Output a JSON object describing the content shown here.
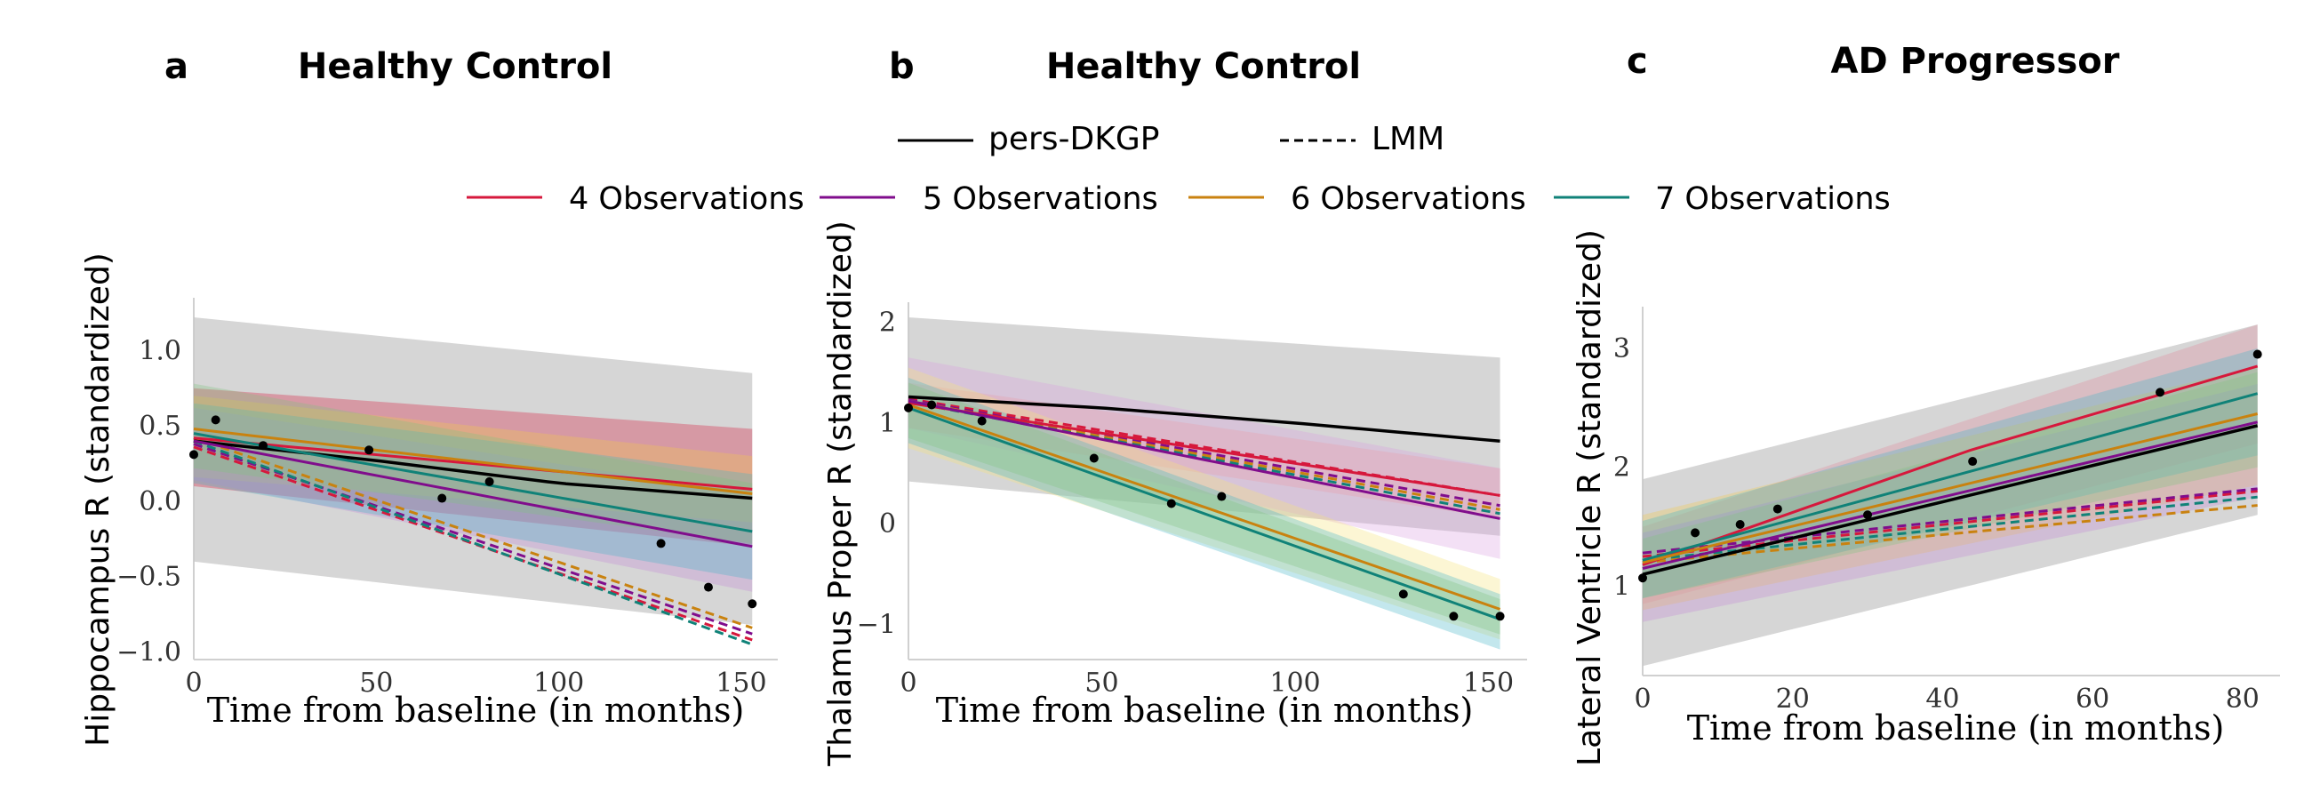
{
  "legend": {
    "styles": [
      {
        "label": "pers-DKGP",
        "dash": "solid"
      },
      {
        "label": "LMM",
        "dash": "dashed"
      }
    ],
    "observations": [
      {
        "label": "4 Observations",
        "color": "#d6183c"
      },
      {
        "label": "5 Observations",
        "color": "#800d8c"
      },
      {
        "label": "6 Observations",
        "color": "#c9820f"
      },
      {
        "label": "7 Observations",
        "color": "#108278"
      }
    ]
  },
  "chart_data": [
    {
      "type": "line",
      "panel_letter": "a",
      "title": "Healthy Control",
      "xlabel": "Time from baseline (in months)",
      "ylabel": "Hippocampus R (standardized)",
      "xlim": [
        0,
        160
      ],
      "ylim": [
        -1.05,
        1.35
      ],
      "xticks": [
        0,
        50,
        100,
        150
      ],
      "xtick_labels": [
        "0",
        "50",
        "100",
        "150"
      ],
      "yticks": [
        -1.0,
        -0.5,
        0.0,
        0.5,
        1.0
      ],
      "ytick_labels": [
        "−1.0",
        "−0.5",
        "0.0",
        "0.5",
        "1.0"
      ],
      "points": [
        {
          "x": 0,
          "y": 0.31
        },
        {
          "x": 6,
          "y": 0.54
        },
        {
          "x": 19,
          "y": 0.37
        },
        {
          "x": 48,
          "y": 0.34
        },
        {
          "x": 68,
          "y": 0.02
        },
        {
          "x": 81,
          "y": 0.13
        },
        {
          "x": 128,
          "y": -0.28
        },
        {
          "x": 141,
          "y": -0.57
        },
        {
          "x": 153,
          "y": -0.68
        }
      ],
      "bands": [
        {
          "name": "pers-DKGP",
          "color": "#c8c8c8",
          "x": [
            0,
            153
          ],
          "lower": [
            -0.4,
            -0.82
          ],
          "upper": [
            1.22,
            0.85
          ]
        },
        {
          "name": "4 Observations",
          "color": "#d6183c",
          "x": [
            0,
            153
          ],
          "lower": [
            0.1,
            -0.3
          ],
          "upper": [
            0.75,
            0.48
          ]
        },
        {
          "name": "6 Observations",
          "color": "#f2c94c",
          "x": [
            0,
            153
          ],
          "lower": [
            0.16,
            -0.14
          ],
          "upper": [
            0.7,
            0.3
          ]
        },
        {
          "name": "5 Observations",
          "color": "#c48ad6",
          "x": [
            0,
            153
          ],
          "lower": [
            0.14,
            -0.6
          ],
          "upper": [
            0.62,
            0.05
          ]
        },
        {
          "name": "7 Observations",
          "color": "#44b4c8",
          "x": [
            0,
            153
          ],
          "lower": [
            0.12,
            -0.52
          ],
          "upper": [
            0.65,
            0.18
          ]
        },
        {
          "name": "overlap",
          "color": "#7fc47f",
          "x": [
            0,
            153
          ],
          "lower": [
            0.22,
            -0.28
          ],
          "upper": [
            0.78,
            0.12
          ]
        }
      ],
      "series": [
        {
          "name": "pers-DKGP",
          "color": "#000000",
          "dash": "solid",
          "x": [
            0,
            50,
            100,
            153
          ],
          "y": [
            0.4,
            0.27,
            0.12,
            0.02
          ]
        },
        {
          "name": "4 Observations",
          "color": "#d6183c",
          "dash": "solid",
          "x": [
            0,
            153
          ],
          "y": [
            0.42,
            0.08
          ]
        },
        {
          "name": "5 Observations",
          "color": "#800d8c",
          "dash": "solid",
          "x": [
            0,
            153
          ],
          "y": [
            0.4,
            -0.3
          ]
        },
        {
          "name": "6 Observations",
          "color": "#c9820f",
          "dash": "solid",
          "x": [
            0,
            153
          ],
          "y": [
            0.48,
            0.05
          ]
        },
        {
          "name": "7 Observations",
          "color": "#108278",
          "dash": "solid",
          "x": [
            0,
            153
          ],
          "y": [
            0.45,
            -0.2
          ]
        },
        {
          "name": "4 Observations",
          "color": "#d6183c",
          "dash": "dashed",
          "x": [
            0,
            153
          ],
          "y": [
            0.36,
            -0.92
          ]
        },
        {
          "name": "5 Observations",
          "color": "#800d8c",
          "dash": "dashed",
          "x": [
            0,
            153
          ],
          "y": [
            0.38,
            -0.88
          ]
        },
        {
          "name": "6 Observations",
          "color": "#c9820f",
          "dash": "dashed",
          "x": [
            0,
            153
          ],
          "y": [
            0.42,
            -0.84
          ]
        },
        {
          "name": "7 Observations",
          "color": "#108278",
          "dash": "dashed",
          "x": [
            0,
            153
          ],
          "y": [
            0.4,
            -0.95
          ]
        }
      ]
    },
    {
      "type": "line",
      "panel_letter": "b",
      "title": "Healthy Control",
      "xlabel": "Time from baseline (in months)",
      "ylabel": "Thalamus Proper R (standardized)",
      "xlim": [
        0,
        160
      ],
      "ylim": [
        -1.35,
        2.2
      ],
      "xticks": [
        0,
        50,
        100,
        150
      ],
      "xtick_labels": [
        "0",
        "50",
        "100",
        "150"
      ],
      "yticks": [
        -1,
        0,
        1,
        2
      ],
      "ytick_labels": [
        "−1",
        "0",
        "1",
        "2"
      ],
      "points": [
        {
          "x": 0,
          "y": 1.15
        },
        {
          "x": 6,
          "y": 1.18
        },
        {
          "x": 19,
          "y": 1.02
        },
        {
          "x": 48,
          "y": 0.65
        },
        {
          "x": 68,
          "y": 0.2
        },
        {
          "x": 81,
          "y": 0.27
        },
        {
          "x": 128,
          "y": -0.7
        },
        {
          "x": 141,
          "y": -0.92
        },
        {
          "x": 153,
          "y": -0.92
        }
      ],
      "bands": [
        {
          "name": "pers-DKGP",
          "color": "#c8c8c8",
          "x": [
            0,
            153
          ],
          "lower": [
            0.42,
            -0.12
          ],
          "upper": [
            2.05,
            1.65
          ]
        },
        {
          "name": "5 Observations",
          "color": "#d9a0e0",
          "x": [
            0,
            153
          ],
          "lower": [
            0.95,
            -0.35
          ],
          "upper": [
            1.65,
            0.55
          ]
        },
        {
          "name": "4 Observations",
          "color": "#e89aa8",
          "x": [
            0,
            153
          ],
          "lower": [
            0.95,
            0.05
          ],
          "upper": [
            1.4,
            0.55
          ]
        },
        {
          "name": "6 Observations",
          "color": "#f7e27a",
          "x": [
            0,
            153
          ],
          "lower": [
            0.75,
            -1.15
          ],
          "upper": [
            1.55,
            -0.55
          ]
        },
        {
          "name": "7 Observations",
          "color": "#44b4c8",
          "x": [
            0,
            153
          ],
          "lower": [
            0.8,
            -1.25
          ],
          "upper": [
            1.45,
            -0.7
          ]
        },
        {
          "name": "overlap",
          "color": "#7fc47f",
          "x": [
            0,
            153
          ],
          "lower": [
            0.85,
            -1.1
          ],
          "upper": [
            1.4,
            -0.75
          ]
        }
      ],
      "series": [
        {
          "name": "pers-DKGP",
          "color": "#000000",
          "dash": "solid",
          "x": [
            0,
            50,
            100,
            153
          ],
          "y": [
            1.26,
            1.15,
            1.0,
            0.82
          ]
        },
        {
          "name": "4 Observations",
          "color": "#d6183c",
          "dash": "solid",
          "x": [
            0,
            153
          ],
          "y": [
            1.2,
            0.28
          ]
        },
        {
          "name": "5 Observations",
          "color": "#800d8c",
          "dash": "solid",
          "x": [
            0,
            153
          ],
          "y": [
            1.22,
            0.05
          ]
        },
        {
          "name": "6 Observations",
          "color": "#c9820f",
          "dash": "solid",
          "x": [
            0,
            153
          ],
          "y": [
            1.18,
            -0.85
          ]
        },
        {
          "name": "7 Observations",
          "color": "#108278",
          "dash": "solid",
          "x": [
            0,
            153
          ],
          "y": [
            1.15,
            -0.95
          ]
        },
        {
          "name": "4 Observations",
          "color": "#d6183c",
          "dash": "dashed",
          "x": [
            0,
            153
          ],
          "y": [
            1.24,
            0.28
          ]
        },
        {
          "name": "5 Observations",
          "color": "#800d8c",
          "dash": "dashed",
          "x": [
            0,
            153
          ],
          "y": [
            1.23,
            0.18
          ]
        },
        {
          "name": "6 Observations",
          "color": "#c9820f",
          "dash": "dashed",
          "x": [
            0,
            153
          ],
          "y": [
            1.22,
            0.14
          ]
        },
        {
          "name": "7 Observations",
          "color": "#108278",
          "dash": "dashed",
          "x": [
            0,
            153
          ],
          "y": [
            1.21,
            0.1
          ]
        }
      ]
    },
    {
      "type": "line",
      "panel_letter": "c",
      "title": "AD Progressor",
      "xlabel": "Time from baseline (in months)",
      "ylabel": "Lateral Ventricle R (standardized)",
      "xlim": [
        0,
        85
      ],
      "ylim": [
        0.25,
        3.35
      ],
      "xticks": [
        0,
        20,
        40,
        60,
        80
      ],
      "xtick_labels": [
        "0",
        "20",
        "40",
        "60",
        "80"
      ],
      "yticks": [
        1,
        2,
        3
      ],
      "ytick_labels": [
        "1",
        "2",
        "3"
      ],
      "points": [
        {
          "x": 0,
          "y": 1.07
        },
        {
          "x": 7,
          "y": 1.45
        },
        {
          "x": 13,
          "y": 1.52
        },
        {
          "x": 18,
          "y": 1.65
        },
        {
          "x": 30,
          "y": 1.6
        },
        {
          "x": 44,
          "y": 2.05
        },
        {
          "x": 69,
          "y": 2.63
        },
        {
          "x": 82,
          "y": 2.95
        }
      ],
      "bands": [
        {
          "name": "pers-DKGP",
          "color": "#c8c8c8",
          "x": [
            0,
            82
          ],
          "lower": [
            0.33,
            1.6
          ],
          "upper": [
            1.9,
            3.2
          ]
        },
        {
          "name": "4 Observations",
          "color": "#e08a9c",
          "x": [
            0,
            82
          ],
          "lower": [
            0.85,
            2.2
          ],
          "upper": [
            1.5,
            3.2
          ]
        },
        {
          "name": "6 Observations",
          "color": "#f2c94c",
          "x": [
            0,
            82
          ],
          "lower": [
            0.8,
            1.85
          ],
          "upper": [
            1.6,
            2.85
          ]
        },
        {
          "name": "5 Observations",
          "color": "#c48ad6",
          "x": [
            0,
            82
          ],
          "lower": [
            0.7,
            1.75
          ],
          "upper": [
            1.45,
            2.7
          ]
        },
        {
          "name": "7 Observations",
          "color": "#44b4c8",
          "x": [
            0,
            82
          ],
          "lower": [
            0.9,
            2.1
          ],
          "upper": [
            1.55,
            3.0
          ]
        },
        {
          "name": "overlap",
          "color": "#7fc47f",
          "x": [
            0,
            82
          ],
          "lower": [
            0.9,
            2.0
          ],
          "upper": [
            1.4,
            2.8
          ]
        }
      ],
      "series": [
        {
          "name": "pers-DKGP",
          "color": "#000000",
          "dash": "solid",
          "x": [
            0,
            82
          ],
          "y": [
            1.1,
            2.35
          ]
        },
        {
          "name": "4 Observations",
          "color": "#d6183c",
          "dash": "solid",
          "x": [
            0,
            44,
            82
          ],
          "y": [
            1.18,
            2.15,
            2.85
          ]
        },
        {
          "name": "5 Observations",
          "color": "#800d8c",
          "dash": "solid",
          "x": [
            0,
            82
          ],
          "y": [
            1.15,
            2.38
          ]
        },
        {
          "name": "6 Observations",
          "color": "#c9820f",
          "dash": "solid",
          "x": [
            0,
            82
          ],
          "y": [
            1.2,
            2.45
          ]
        },
        {
          "name": "7 Observations",
          "color": "#108278",
          "dash": "solid",
          "x": [
            0,
            82
          ],
          "y": [
            1.22,
            2.62
          ]
        },
        {
          "name": "4 Observations",
          "color": "#d6183c",
          "dash": "dashed",
          "x": [
            0,
            82
          ],
          "y": [
            1.25,
            1.8
          ]
        },
        {
          "name": "5 Observations",
          "color": "#800d8c",
          "dash": "dashed",
          "x": [
            0,
            82
          ],
          "y": [
            1.28,
            1.82
          ]
        },
        {
          "name": "6 Observations",
          "color": "#c9820f",
          "dash": "dashed",
          "x": [
            0,
            82
          ],
          "y": [
            1.2,
            1.68
          ]
        },
        {
          "name": "7 Observations",
          "color": "#108278",
          "dash": "dashed",
          "x": [
            0,
            82
          ],
          "y": [
            1.22,
            1.75
          ]
        }
      ]
    }
  ]
}
